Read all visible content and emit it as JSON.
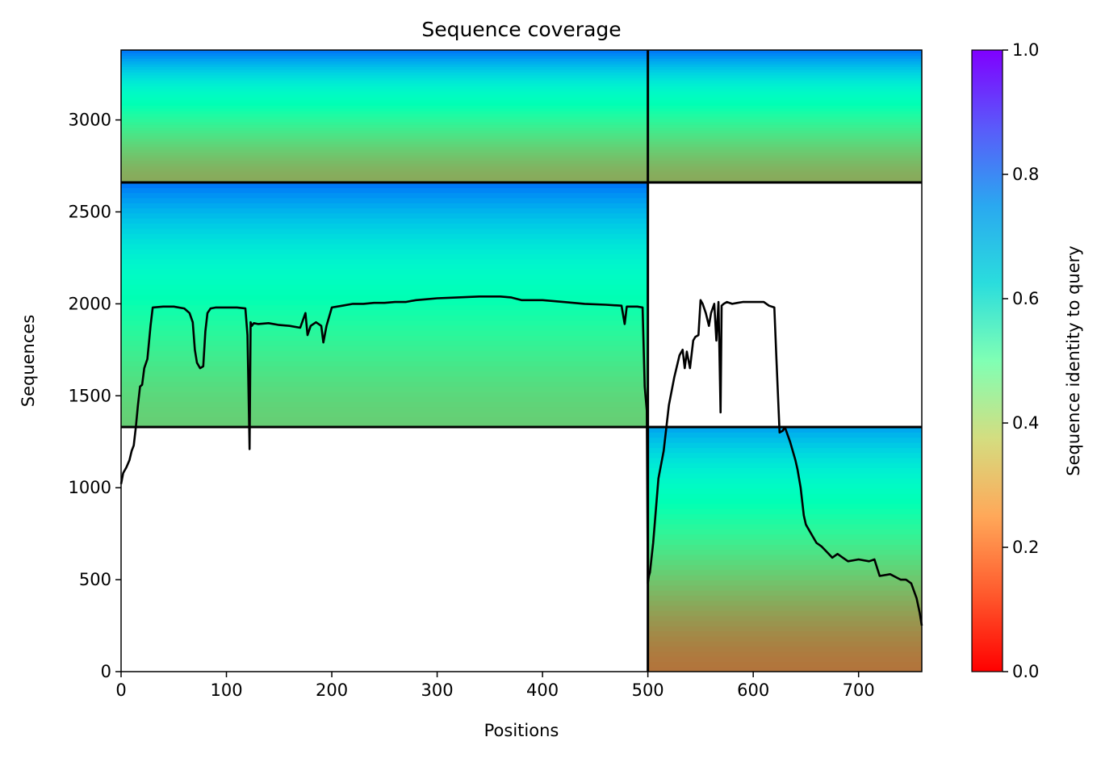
{
  "chart_data": {
    "type": "heatmap",
    "title": "Sequence coverage",
    "xlabel": "Positions",
    "ylabel": "Sequences",
    "xlim": [
      0,
      760
    ],
    "ylim": [
      0,
      3380
    ],
    "x_ticks": [
      0,
      100,
      200,
      300,
      400,
      500,
      600,
      700
    ],
    "y_ticks": [
      0,
      500,
      1000,
      1500,
      2000,
      2500,
      3000
    ],
    "grid": false,
    "colorbar": {
      "label": "Sequence identity to query",
      "colormap": "rainbow_r",
      "range": [
        0.0,
        1.0
      ],
      "ticks": [
        0.0,
        0.2,
        0.4,
        0.6,
        0.8,
        1.0
      ]
    },
    "block_divider_x": 500,
    "block_divider_y": [
      1330,
      2660
    ],
    "blocks": [
      {
        "x_range": [
          0,
          500
        ],
        "seq_range": [
          2660,
          3380
        ],
        "identity_top": 0.85,
        "identity_bottom": 0.23
      },
      {
        "x_range": [
          500,
          760
        ],
        "seq_range": [
          2660,
          3380
        ],
        "identity_top": 0.85,
        "identity_bottom": 0.23
      },
      {
        "x_range": [
          0,
          500
        ],
        "seq_range": [
          1330,
          2660
        ],
        "identity_top": 0.85,
        "identity_bottom": 0.3
      },
      {
        "x_range": [
          500,
          760
        ],
        "seq_range": [
          0,
          1330
        ],
        "identity_top": 0.78,
        "identity_bottom": 0.15
      }
    ],
    "coverage_line": {
      "x": [
        0,
        2,
        5,
        8,
        10,
        12,
        14,
        16,
        18,
        20,
        22,
        25,
        28,
        30,
        40,
        50,
        60,
        65,
        68,
        70,
        72,
        75,
        78,
        80,
        82,
        85,
        90,
        100,
        110,
        118,
        120,
        122,
        123,
        124,
        126,
        130,
        140,
        150,
        160,
        170,
        175,
        177,
        180,
        185,
        190,
        192,
        195,
        200,
        210,
        220,
        230,
        240,
        250,
        260,
        270,
        280,
        290,
        300,
        320,
        340,
        360,
        370,
        380,
        400,
        420,
        440,
        460,
        475,
        478,
        480,
        490,
        495,
        497,
        499,
        500,
        501,
        502,
        505,
        510,
        515,
        520,
        525,
        530,
        533,
        535,
        537,
        540,
        543,
        545,
        548,
        550,
        552,
        555,
        558,
        560,
        563,
        565,
        567,
        569,
        570,
        572,
        575,
        580,
        585,
        590,
        600,
        610,
        615,
        620,
        622,
        625,
        628,
        630,
        635,
        640,
        642,
        645,
        648,
        650,
        655,
        660,
        665,
        670,
        675,
        680,
        685,
        690,
        700,
        710,
        715,
        720,
        730,
        740,
        745,
        750,
        755,
        758,
        760
      ],
      "y": [
        1020,
        1080,
        1110,
        1150,
        1200,
        1230,
        1330,
        1450,
        1550,
        1560,
        1650,
        1700,
        1880,
        1980,
        1985,
        1985,
        1975,
        1950,
        1900,
        1750,
        1680,
        1650,
        1660,
        1850,
        1950,
        1975,
        1980,
        1980,
        1980,
        1975,
        1830,
        1210,
        1900,
        1880,
        1895,
        1890,
        1895,
        1885,
        1880,
        1870,
        1950,
        1830,
        1880,
        1900,
        1880,
        1790,
        1880,
        1980,
        1990,
        2000,
        2000,
        2005,
        2005,
        2010,
        2010,
        2020,
        2025,
        2030,
        2035,
        2040,
        2040,
        2035,
        2020,
        2020,
        2010,
        2000,
        1995,
        1990,
        1890,
        1985,
        1985,
        1980,
        1550,
        1420,
        480,
        520,
        540,
        700,
        1050,
        1200,
        1450,
        1600,
        1720,
        1750,
        1650,
        1740,
        1650,
        1800,
        1820,
        1830,
        2020,
        2000,
        1950,
        1880,
        1950,
        2000,
        1800,
        2010,
        1410,
        1990,
        2000,
        2010,
        2000,
        2005,
        2010,
        2010,
        2010,
        1990,
        1980,
        1700,
        1300,
        1310,
        1330,
        1250,
        1150,
        1100,
        1000,
        850,
        800,
        750,
        700,
        680,
        650,
        620,
        640,
        620,
        600,
        610,
        600,
        610,
        520,
        530,
        500,
        500,
        480,
        400,
        320,
        250
      ]
    }
  }
}
